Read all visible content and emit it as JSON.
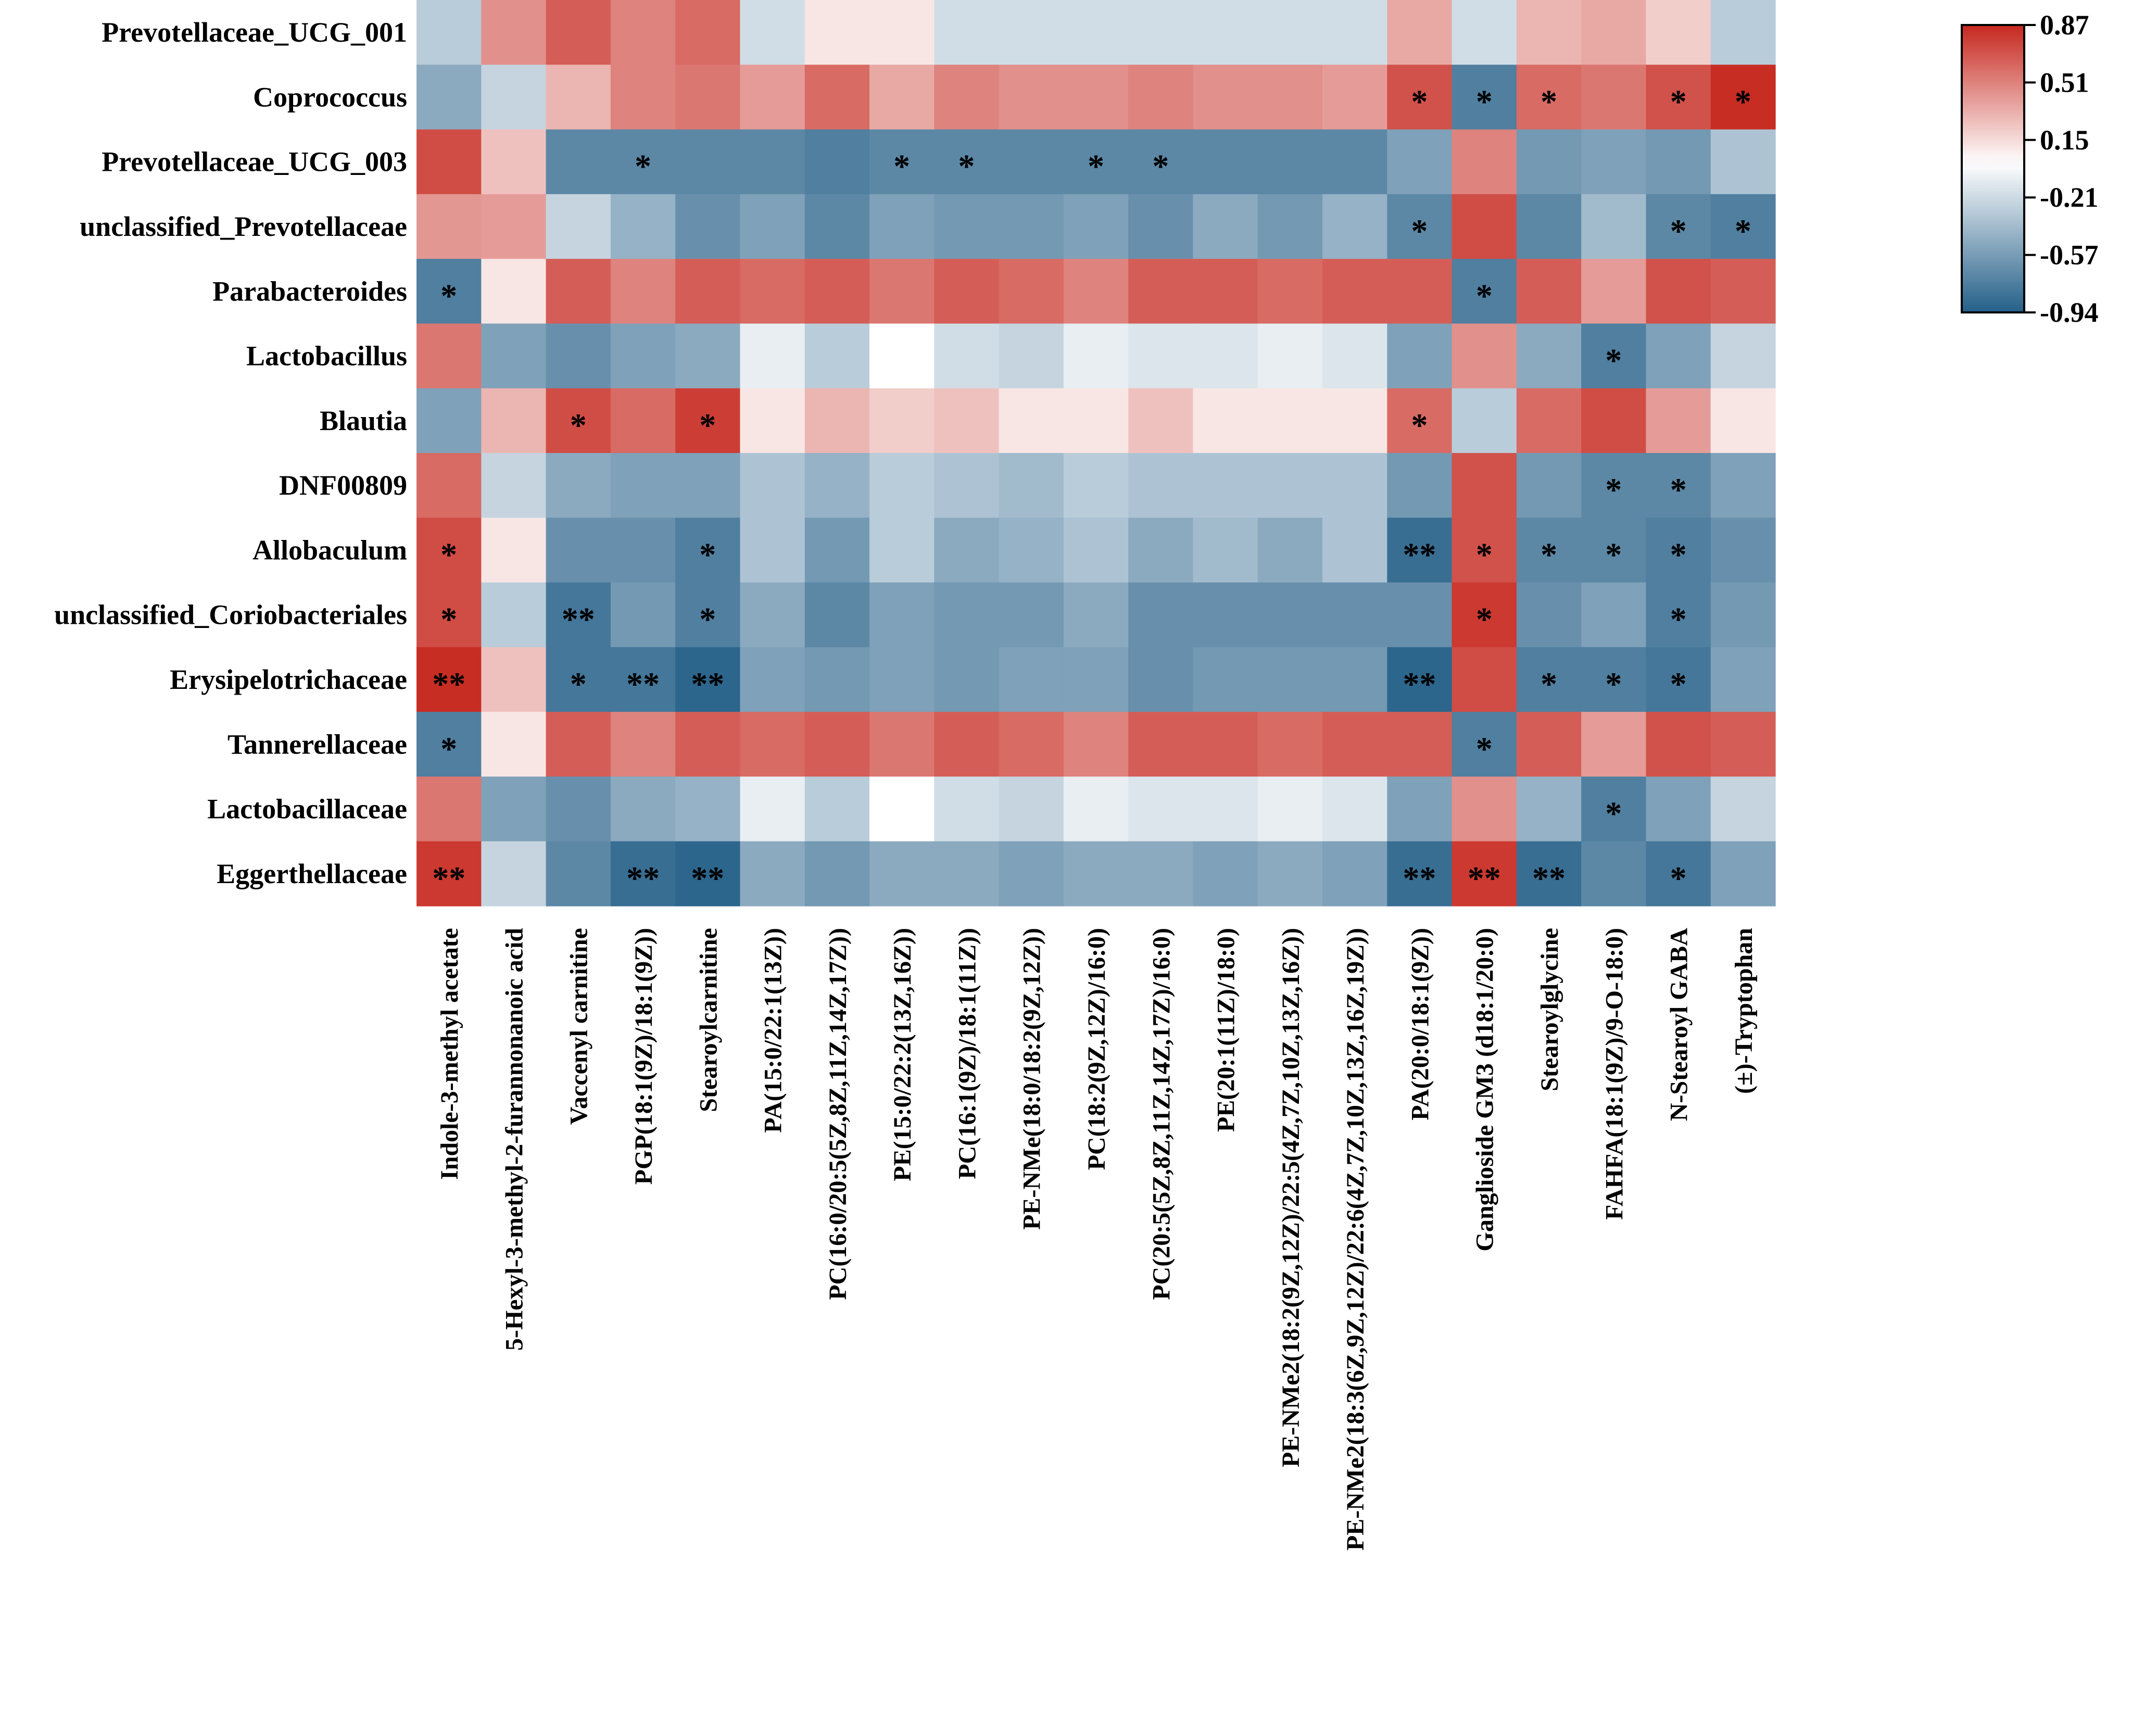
{
  "chart_data": {
    "type": "heatmap",
    "title": "",
    "xlabel": "",
    "ylabel": "",
    "rows": [
      "Prevotellaceae_UCG_001",
      "Coprococcus",
      "Prevotellaceae_UCG_003",
      "unclassified_Prevotellaceae",
      "Parabacteroides",
      "Lactobacillus",
      "Blautia",
      "DNF00809",
      "Allobaculum",
      "unclassified_Coriobacteriales",
      "Erysipelotrichaceae",
      "Tannerellaceae",
      "Lactobacillaceae",
      "Eggerthellaceae"
    ],
    "columns": [
      "Indole-3-methyl acetate",
      "5-Hexyl-3-methyl-2-furannonanoic acid",
      "Vaccenyl carnitine",
      "PGP(18:1(9Z)/18:1(9Z))",
      "Stearoylcarnitine",
      "PA(15:0/22:1(13Z))",
      "PC(16:0/20:5(5Z,8Z,11Z,14Z,17Z))",
      "PE(15:0/22:2(13Z,16Z))",
      "PC(16:1(9Z)/18:1(11Z))",
      "PE-NMe(18:0/18:2(9Z,12Z))",
      "PC(18:2(9Z,12Z)/16:0)",
      "PC(20:5(5Z,8Z,11Z,14Z,17Z)/16:0)",
      "PE(20:1(11Z)/18:0)",
      "PE-NMe2(18:2(9Z,12Z)/22:5(4Z,7Z,10Z,13Z,16Z))",
      "PE-NMe2(18:3(6Z,9Z,12Z)/22:6(4Z,7Z,10Z,13Z,16Z,19Z))",
      "PA(20:0/18:1(9Z))",
      "Ganglioside GM3 (d18:1/20:0)",
      "Stearoylglycine",
      "FAHFA(18:1(9Z)/9-O-18:0)",
      "N-Stearoyl GABA",
      "(±)-Tryptophan"
    ],
    "values": [
      [
        -0.3,
        0.45,
        0.65,
        0.5,
        0.6,
        -0.2,
        0.1,
        0.1,
        -0.2,
        -0.2,
        -0.2,
        -0.2,
        -0.2,
        -0.2,
        -0.2,
        0.35,
        -0.2,
        0.3,
        0.35,
        0.2,
        -0.3
      ],
      [
        -0.5,
        -0.25,
        0.3,
        0.5,
        0.55,
        0.4,
        0.6,
        0.35,
        0.5,
        0.45,
        0.45,
        0.5,
        0.45,
        0.45,
        0.4,
        0.7,
        -0.75,
        0.6,
        0.55,
        0.7,
        0.85
      ],
      [
        0.72,
        0.25,
        -0.7,
        -0.7,
        -0.7,
        -0.7,
        -0.75,
        -0.7,
        -0.7,
        -0.7,
        -0.7,
        -0.7,
        -0.7,
        -0.7,
        -0.7,
        -0.55,
        0.5,
        -0.6,
        -0.55,
        -0.6,
        -0.35
      ],
      [
        0.42,
        0.4,
        -0.25,
        -0.45,
        -0.65,
        -0.55,
        -0.7,
        -0.55,
        -0.6,
        -0.6,
        -0.55,
        -0.65,
        -0.5,
        -0.6,
        -0.45,
        -0.7,
        0.72,
        -0.7,
        -0.4,
        -0.7,
        -0.75
      ],
      [
        -0.75,
        0.1,
        0.65,
        0.5,
        0.65,
        0.6,
        0.65,
        0.55,
        0.65,
        0.6,
        0.5,
        0.65,
        0.65,
        0.6,
        0.65,
        0.65,
        -0.75,
        0.65,
        0.4,
        0.7,
        0.65
      ],
      [
        0.55,
        -0.55,
        -0.65,
        -0.55,
        -0.5,
        -0.1,
        -0.3,
        0.0,
        -0.2,
        -0.25,
        -0.1,
        -0.15,
        -0.15,
        -0.1,
        -0.15,
        -0.55,
        0.45,
        -0.5,
        -0.75,
        -0.55,
        -0.25
      ],
      [
        -0.55,
        0.3,
        0.72,
        0.6,
        0.78,
        0.1,
        0.3,
        0.2,
        0.25,
        0.1,
        0.1,
        0.25,
        0.1,
        0.1,
        0.1,
        0.6,
        -0.3,
        0.6,
        0.72,
        0.4,
        0.1
      ],
      [
        0.6,
        -0.25,
        -0.5,
        -0.55,
        -0.55,
        -0.35,
        -0.45,
        -0.3,
        -0.35,
        -0.4,
        -0.3,
        -0.35,
        -0.35,
        -0.35,
        -0.35,
        -0.6,
        0.7,
        -0.6,
        -0.7,
        -0.7,
        -0.55
      ],
      [
        0.72,
        0.1,
        -0.65,
        -0.65,
        -0.75,
        -0.35,
        -0.6,
        -0.3,
        -0.5,
        -0.45,
        -0.35,
        -0.5,
        -0.4,
        -0.5,
        -0.35,
        -0.85,
        0.7,
        -0.7,
        -0.7,
        -0.75,
        -0.65
      ],
      [
        0.72,
        -0.3,
        -0.8,
        -0.6,
        -0.75,
        -0.5,
        -0.7,
        -0.55,
        -0.6,
        -0.6,
        -0.5,
        -0.65,
        -0.65,
        -0.65,
        -0.65,
        -0.65,
        0.8,
        -0.65,
        -0.55,
        -0.75,
        -0.6
      ],
      [
        0.85,
        0.25,
        -0.8,
        -0.8,
        -0.9,
        -0.55,
        -0.6,
        -0.55,
        -0.6,
        -0.55,
        -0.55,
        -0.65,
        -0.6,
        -0.6,
        -0.6,
        -0.9,
        0.72,
        -0.75,
        -0.75,
        -0.8,
        -0.55
      ],
      [
        -0.75,
        0.1,
        0.65,
        0.5,
        0.65,
        0.6,
        0.65,
        0.55,
        0.65,
        0.6,
        0.5,
        0.65,
        0.65,
        0.6,
        0.65,
        0.65,
        -0.75,
        0.65,
        0.4,
        0.7,
        0.65
      ],
      [
        0.55,
        -0.55,
        -0.65,
        -0.5,
        -0.45,
        -0.1,
        -0.3,
        0.0,
        -0.2,
        -0.25,
        -0.1,
        -0.15,
        -0.15,
        -0.1,
        -0.15,
        -0.55,
        0.45,
        -0.45,
        -0.75,
        -0.55,
        -0.25
      ],
      [
        0.8,
        -0.25,
        -0.7,
        -0.85,
        -0.9,
        -0.5,
        -0.6,
        -0.5,
        -0.5,
        -0.55,
        -0.5,
        -0.5,
        -0.55,
        -0.5,
        -0.55,
        -0.85,
        0.8,
        -0.85,
        -0.7,
        -0.8,
        -0.55
      ]
    ],
    "significance": [
      [
        "",
        "",
        "",
        "",
        "",
        "",
        "",
        "",
        "",
        "",
        "",
        "",
        "",
        "",
        "",
        "",
        "",
        "",
        "",
        "",
        ""
      ],
      [
        "",
        "",
        "",
        "",
        "",
        "",
        "",
        "",
        "",
        "",
        "",
        "",
        "",
        "",
        "",
        "*",
        "*",
        "*",
        "",
        "*",
        "*"
      ],
      [
        "",
        "",
        "",
        "*",
        "",
        "",
        "",
        "*",
        "*",
        "",
        "*",
        "*",
        "",
        "",
        "",
        "",
        "",
        "",
        "",
        "",
        ""
      ],
      [
        "",
        "",
        "",
        "",
        "",
        "",
        "",
        "",
        "",
        "",
        "",
        "",
        "",
        "",
        "",
        "*",
        "",
        "",
        "",
        "*",
        "*"
      ],
      [
        "*",
        "",
        "",
        "",
        "",
        "",
        "",
        "",
        "",
        "",
        "",
        "",
        "",
        "",
        "",
        "",
        "*",
        "",
        "",
        "",
        ""
      ],
      [
        "",
        "",
        "",
        "",
        "",
        "",
        "",
        "",
        "",
        "",
        "",
        "",
        "",
        "",
        "",
        "",
        "",
        "",
        "*",
        "",
        ""
      ],
      [
        "",
        "",
        "*",
        "",
        "*",
        "",
        "",
        "",
        "",
        "",
        "",
        "",
        "",
        "",
        "",
        "*",
        "",
        "",
        "",
        "",
        ""
      ],
      [
        "",
        "",
        "",
        "",
        "",
        "",
        "",
        "",
        "",
        "",
        "",
        "",
        "",
        "",
        "",
        "",
        "",
        "",
        "*",
        "*",
        ""
      ],
      [
        "*",
        "",
        "",
        "",
        "*",
        "",
        "",
        "",
        "",
        "",
        "",
        "",
        "",
        "",
        "",
        "**",
        "*",
        "*",
        "*",
        "*",
        ""
      ],
      [
        "*",
        "",
        "**",
        "",
        "*",
        "",
        "",
        "",
        "",
        "",
        "",
        "",
        "",
        "",
        "",
        "",
        "*",
        "",
        "",
        "*",
        ""
      ],
      [
        "**",
        "",
        "*",
        "**",
        "**",
        "",
        "",
        "",
        "",
        "",
        "",
        "",
        "",
        "",
        "",
        "**",
        "",
        "*",
        "*",
        "*",
        ""
      ],
      [
        "*",
        "",
        "",
        "",
        "",
        "",
        "",
        "",
        "",
        "",
        "",
        "",
        "",
        "",
        "",
        "",
        "*",
        "",
        "",
        "",
        ""
      ],
      [
        "",
        "",
        "",
        "",
        "",
        "",
        "",
        "",
        "",
        "",
        "",
        "",
        "",
        "",
        "",
        "",
        "",
        "",
        "*",
        "",
        ""
      ],
      [
        "**",
        "",
        "",
        "**",
        "**",
        "",
        "",
        "",
        "",
        "",
        "",
        "",
        "",
        "",
        "",
        "**",
        "**",
        "**",
        "",
        "*",
        ""
      ]
    ],
    "zlim": [
      -0.94,
      0.87
    ],
    "colorbar": {
      "ticks": [
        "0.87",
        "0.51",
        "0.15",
        "-0.21",
        "-0.57",
        "-0.94"
      ],
      "low_color": "#245f88",
      "mid_color": "#ffffff",
      "high_color": "#c6281e",
      "placement": "top-right"
    },
    "grid": false,
    "legend": "colorbar"
  }
}
